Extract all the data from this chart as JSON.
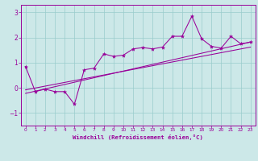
{
  "xlabel": "Windchill (Refroidissement éolien,°C)",
  "background_color": "#cce8e8",
  "line_color": "#990099",
  "grid_color": "#99cccc",
  "xlim": [
    -0.5,
    23.5
  ],
  "ylim": [
    -1.5,
    3.3
  ],
  "xticks": [
    0,
    1,
    2,
    3,
    4,
    5,
    6,
    7,
    8,
    9,
    10,
    11,
    12,
    13,
    14,
    15,
    16,
    17,
    18,
    19,
    20,
    21,
    22,
    23
  ],
  "yticks": [
    -1,
    0,
    1,
    2,
    3
  ],
  "data_x": [
    0,
    1,
    2,
    3,
    4,
    5,
    6,
    7,
    8,
    9,
    10,
    11,
    12,
    13,
    14,
    15,
    16,
    17,
    18,
    19,
    20,
    21,
    22,
    23
  ],
  "data_y": [
    0.85,
    -0.15,
    -0.05,
    -0.15,
    -0.15,
    -0.65,
    0.72,
    0.78,
    1.35,
    1.25,
    1.3,
    1.55,
    1.6,
    1.55,
    1.62,
    2.05,
    2.05,
    2.85,
    1.95,
    1.65,
    1.58,
    2.05,
    1.75,
    1.82
  ],
  "trend1_x": [
    0,
    23
  ],
  "trend1_y": [
    -0.22,
    1.82
  ],
  "trend2_x": [
    0,
    23
  ],
  "trend2_y": [
    -0.08,
    1.62
  ]
}
